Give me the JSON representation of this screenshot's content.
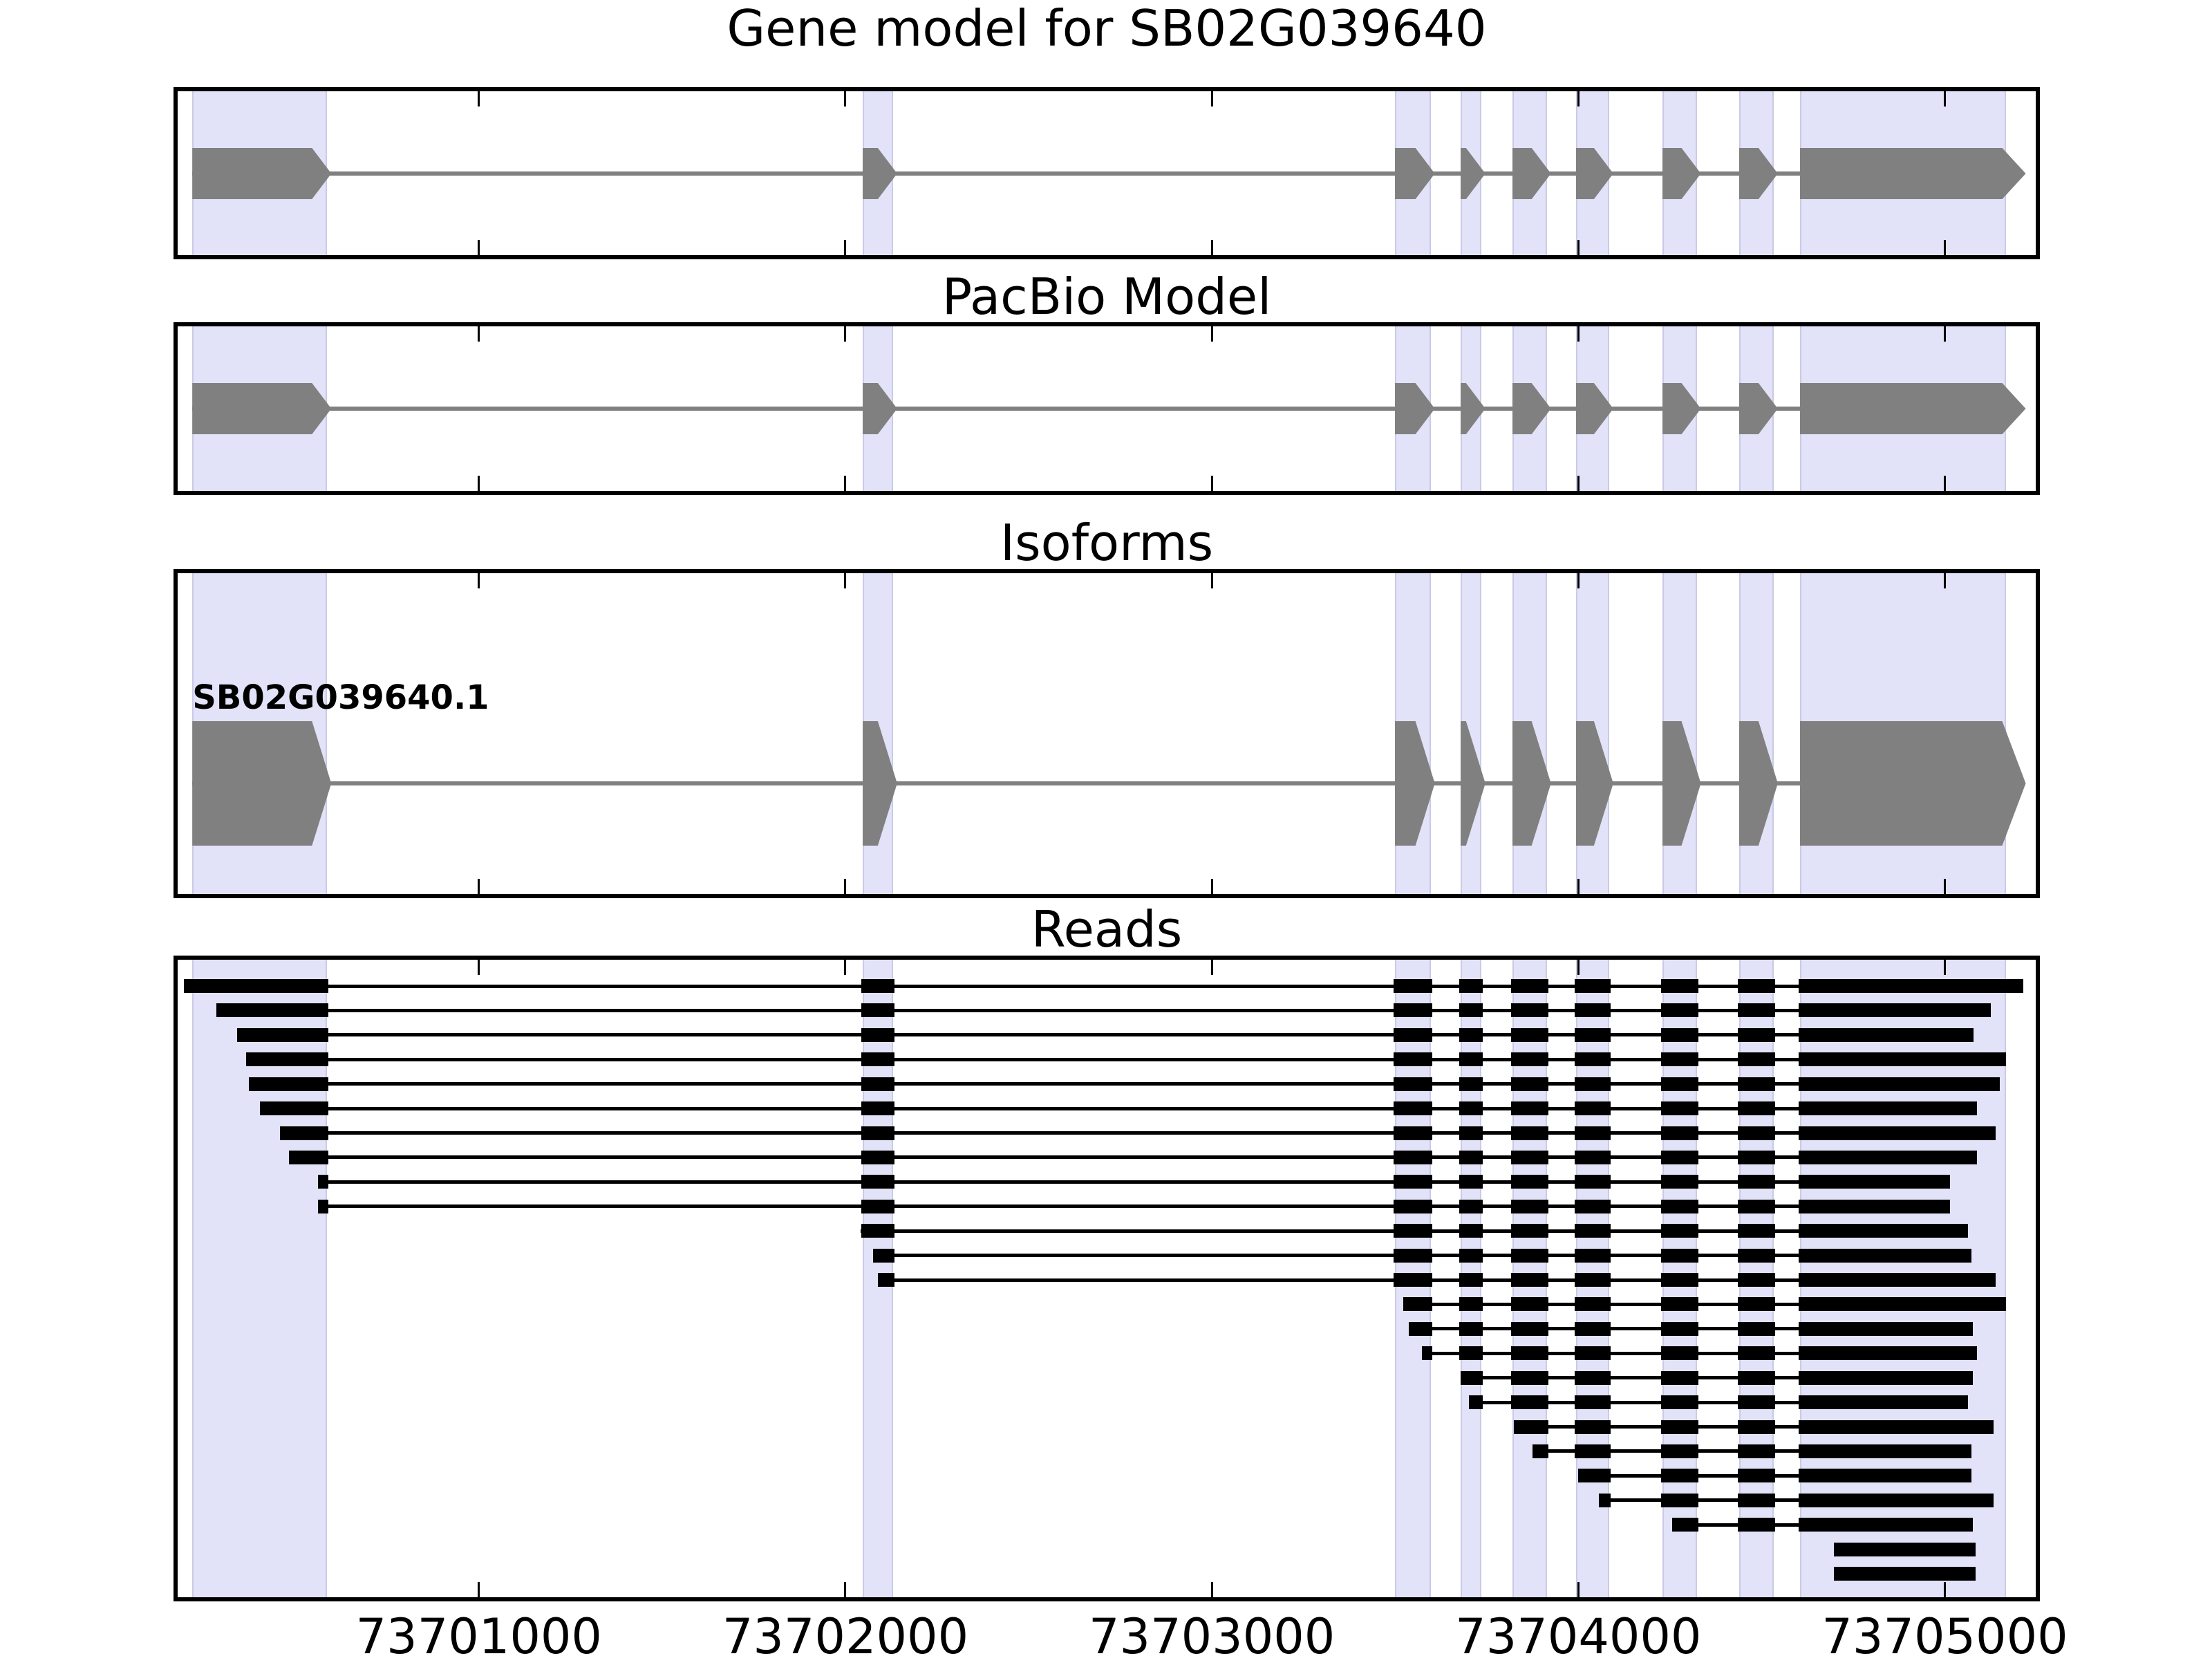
{
  "chart_data": {
    "type": "gene-model-browser",
    "gene_id": "SB02G039640",
    "panels": [
      {
        "key": "gene_model",
        "title": "Gene model for SB02G039640",
        "kind": "model"
      },
      {
        "key": "pacbio_model",
        "title": "PacBio Model",
        "kind": "model"
      },
      {
        "key": "isoforms",
        "title": "Isoforms",
        "kind": "model",
        "feature_label": "SB02G039640.1"
      },
      {
        "key": "reads",
        "title": "Reads",
        "kind": "reads"
      }
    ],
    "x_axis": {
      "min": 73700178,
      "max": 73705248,
      "ticks": [
        {
          "value": 73701000,
          "label": "73701000"
        },
        {
          "value": 73702000,
          "label": "73702000"
        },
        {
          "value": 73703000,
          "label": "73703000"
        },
        {
          "value": 73704000,
          "label": "73704000"
        },
        {
          "value": 73705000,
          "label": "73705000"
        }
      ]
    },
    "exons": [
      [
        73700218,
        73700586
      ],
      [
        73702047,
        73702130
      ],
      [
        73703499,
        73703597
      ],
      [
        73703678,
        73703735
      ],
      [
        73703820,
        73703914
      ],
      [
        73703993,
        73704084
      ],
      [
        73704229,
        73704323
      ],
      [
        73704438,
        73704533
      ],
      [
        73704604,
        73705166
      ]
    ],
    "highlight_regions": [
      [
        73700218,
        73700586
      ],
      [
        73702047,
        73702130
      ],
      [
        73703499,
        73703597
      ],
      [
        73703678,
        73703735
      ],
      [
        73703820,
        73703914
      ],
      [
        73703993,
        73704084
      ],
      [
        73704229,
        73704323
      ],
      [
        73704438,
        73704533
      ],
      [
        73704604,
        73705166
      ]
    ],
    "reads": [
      [
        73700199,
        73705210
      ],
      [
        73700288,
        73705121
      ],
      [
        73700344,
        73705074
      ],
      [
        73700369,
        73705163
      ],
      [
        73700376,
        73705147
      ],
      [
        73700406,
        73705083
      ],
      [
        73700461,
        73705134
      ],
      [
        73700486,
        73705083
      ],
      [
        73700565,
        73705011
      ],
      [
        73700565,
        73705011
      ],
      [
        73702041,
        73705059
      ],
      [
        73702079,
        73705068
      ],
      [
        73702092,
        73705134
      ],
      [
        73703526,
        73705163
      ],
      [
        73703541,
        73705072
      ],
      [
        73703577,
        73705083
      ],
      [
        73703682,
        73705072
      ],
      [
        73703705,
        73705059
      ],
      [
        73703827,
        73705130
      ],
      [
        73703878,
        73705068
      ],
      [
        73704003,
        73705068
      ],
      [
        73704059,
        73705130
      ],
      [
        73704259,
        73705072
      ],
      [
        73704701,
        73705081
      ],
      [
        73704701,
        73705081
      ]
    ],
    "colors": {
      "exon_fill": "#808080",
      "intron_line": "#808080",
      "read_fill": "#000000",
      "highlight_fill": "#E2E2F8",
      "highlight_edge": "#CACAE8",
      "panel_border": "#000000",
      "background": "#FFFFFF",
      "text": "#000000"
    }
  }
}
